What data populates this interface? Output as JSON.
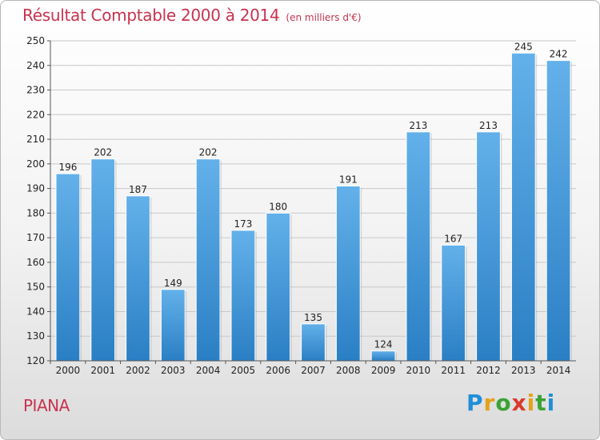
{
  "title": "Résultat Comptable 2000 à 2014",
  "subtitle": "(en milliers d'€)",
  "city": "PIANA",
  "logo": {
    "letters": [
      "P",
      "r",
      "o",
      "x",
      "i",
      "t",
      "i"
    ],
    "colors": [
      "#1f8fd8",
      "#e3a21a",
      "#3aa335",
      "#d93a2b",
      "#e3a21a",
      "#3aa335",
      "#1f8fd8"
    ]
  },
  "colors": {
    "bar_top": "#63b1ea",
    "bar_bottom": "#2a7fc4",
    "title": "#c8334f",
    "grid": "#c8c8c8"
  },
  "chart_data": {
    "type": "bar",
    "title": "Résultat Comptable 2000 à 2014",
    "subtitle": "(en milliers d'€)",
    "categories": [
      "2000",
      "2001",
      "2002",
      "2003",
      "2004",
      "2005",
      "2006",
      "2007",
      "2008",
      "2009",
      "2010",
      "2011",
      "2012",
      "2013",
      "2014"
    ],
    "values": [
      196,
      202,
      187,
      149,
      202,
      173,
      180,
      135,
      191,
      124,
      213,
      167,
      213,
      245,
      242
    ],
    "ylim": [
      120,
      250
    ],
    "yticks": [
      120,
      130,
      140,
      150,
      160,
      170,
      180,
      190,
      200,
      210,
      220,
      230,
      240,
      250
    ],
    "grid": true,
    "legend": "none"
  }
}
